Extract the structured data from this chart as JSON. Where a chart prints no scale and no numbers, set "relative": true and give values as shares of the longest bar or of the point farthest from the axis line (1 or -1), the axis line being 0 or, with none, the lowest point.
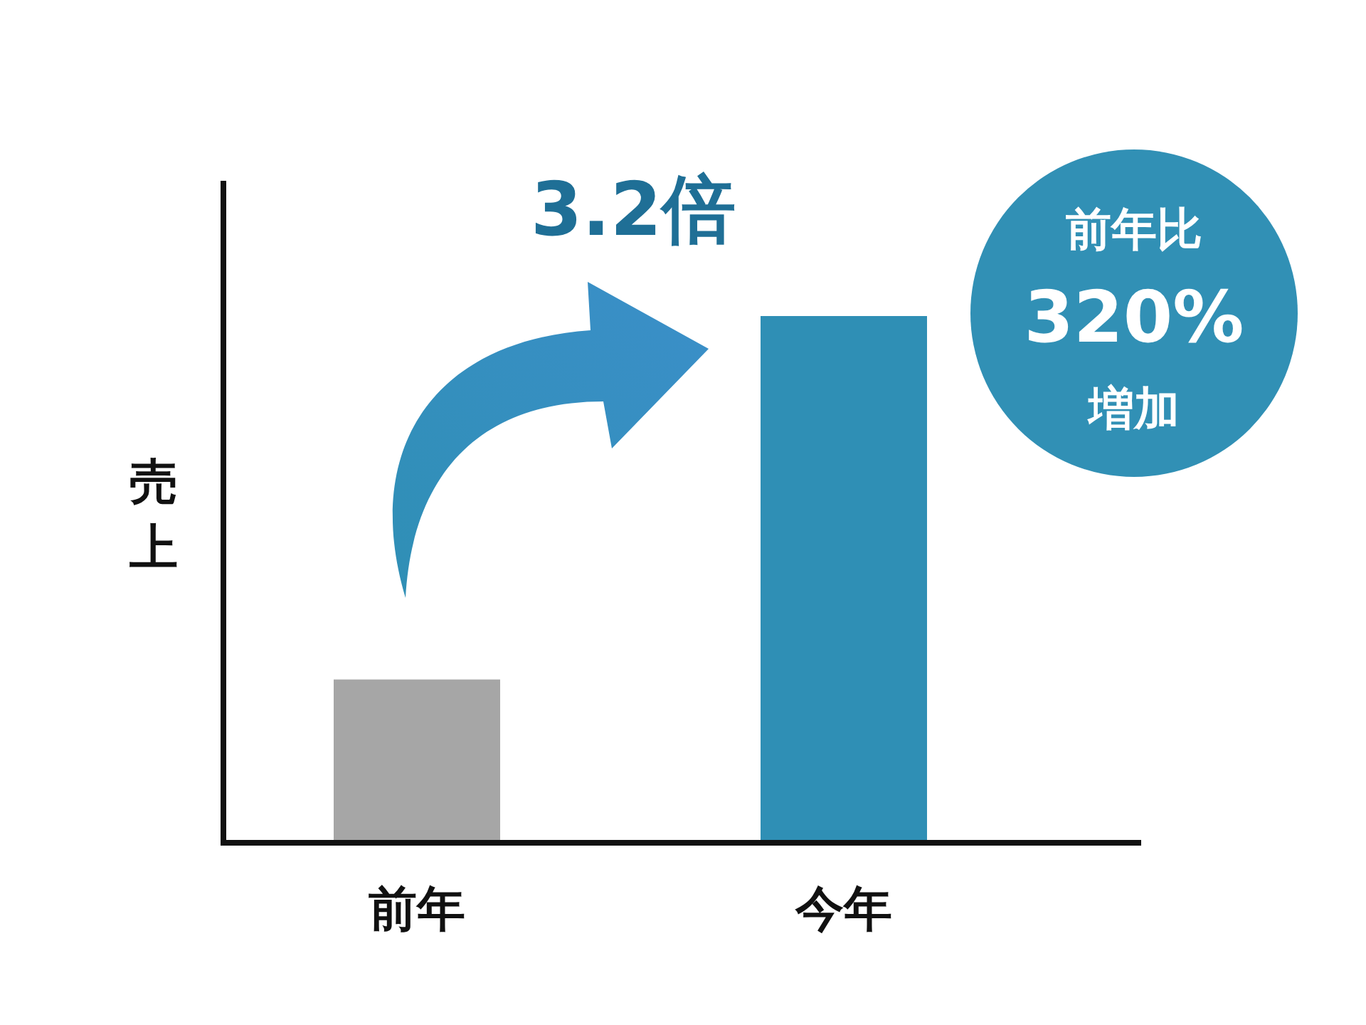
{
  "chart_data": {
    "type": "bar",
    "relative": true,
    "ylabel": "売上",
    "categories": [
      "前年",
      "今年"
    ],
    "values": [
      0.31,
      1
    ],
    "colors": [
      "#a6a6a6",
      "#2f8fb5"
    ],
    "annotations": [
      "3.2倍",
      "前年比",
      "320%",
      "増加"
    ]
  }
}
